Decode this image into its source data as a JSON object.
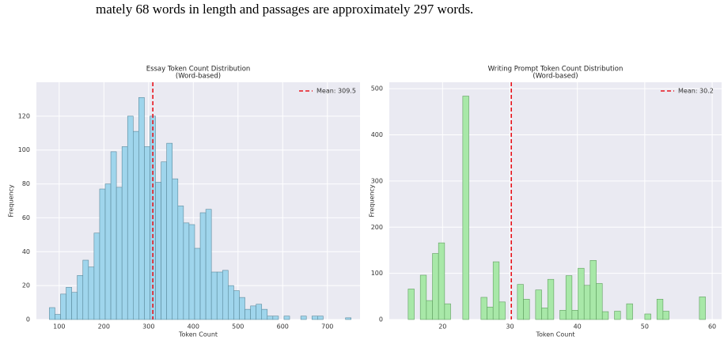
{
  "paragraph": "mately 68 words in length and passages are approximately 297 words.",
  "chart_data": [
    {
      "type": "histogram",
      "title": "Essay Token Count Distribution",
      "subtitle": "(Word-based)",
      "xlabel": "Token Count",
      "ylabel": "Frequency",
      "color": "#9fd5ec",
      "edgecolor": "#5b8a9c",
      "bins": [
        78,
        90.5,
        103,
        115.5,
        128,
        140.5,
        153,
        165.5,
        178,
        190.5,
        203,
        215.5,
        228,
        240.5,
        253,
        265.5,
        278,
        290.5,
        303,
        315.5,
        328,
        340.5,
        353,
        365.5,
        378,
        390.5,
        403,
        415.5,
        428,
        440.5,
        453,
        465.5,
        478,
        490.5,
        503,
        515.5,
        528,
        540.5,
        553,
        565.5,
        578,
        590.5,
        603,
        615.5,
        628,
        640.5,
        653,
        665.5,
        678,
        690.5,
        703,
        715.5,
        728,
        740.5,
        753
      ],
      "values": [
        7,
        3,
        15,
        19,
        16,
        26,
        35,
        31,
        51,
        77,
        80,
        99,
        78,
        102,
        120,
        111,
        131,
        102,
        120,
        81,
        93,
        104,
        83,
        67,
        57,
        56,
        42,
        63,
        65,
        28,
        28,
        29,
        20,
        17,
        13,
        6,
        8,
        9,
        6,
        2,
        2,
        0,
        2,
        0,
        0,
        2,
        0,
        2,
        2,
        0,
        0,
        0,
        0,
        1
      ],
      "mean": 309.5,
      "mean_label": "Mean: 309.5",
      "mean_color": "#e8141c",
      "xlim": [
        49,
        773
      ],
      "ylim": [
        0,
        140
      ],
      "xticks": [
        100,
        200,
        300,
        400,
        500,
        600,
        700
      ],
      "yticks": [
        0,
        20,
        40,
        60,
        80,
        100,
        120
      ],
      "grid": true
    },
    {
      "type": "histogram",
      "title": "Writing Prompt Token Count Distribution",
      "subtitle": "(Word-based)",
      "xlabel": "Token Count",
      "ylabel": "Frequency",
      "color": "#a8e8a8",
      "edgecolor": "#5f9e5f",
      "bins": [
        14,
        14.9,
        15.8,
        16.7,
        17.6,
        18.5,
        19.4,
        20.3,
        21.2,
        22.1,
        23,
        23.9,
        24.8,
        25.7,
        26.6,
        27.5,
        28.4,
        29.3,
        30.2,
        31.1,
        32,
        32.9,
        33.8,
        34.7,
        35.6,
        36.5,
        37.4,
        38.3,
        39.2,
        40.1,
        41,
        41.9,
        42.8,
        43.7,
        44.6,
        45.5,
        46.4,
        47.3,
        48.2,
        49.1,
        50,
        50.9,
        51.8,
        52.7,
        53.6,
        54.5,
        55.4,
        56.3,
        57.2,
        58.1,
        59
      ],
      "values": [
        0,
        66,
        0,
        96,
        41,
        143,
        166,
        34,
        0,
        0,
        484,
        0,
        0,
        48,
        27,
        125,
        38,
        0,
        0,
        76,
        44,
        0,
        64,
        25,
        87,
        0,
        20,
        95,
        20,
        111,
        74,
        128,
        78,
        17,
        0,
        18,
        0,
        34,
        0,
        0,
        12,
        0,
        44,
        18,
        0,
        0,
        0,
        0,
        0,
        49
      ],
      "mean": 30.2,
      "mean_label": "Mean: 30.2",
      "mean_color": "#e8141c",
      "xlim": [
        12.1,
        61.4
      ],
      "ylim": [
        0,
        514
      ],
      "xticks": [
        20,
        30,
        40,
        50,
        60
      ],
      "yticks": [
        0,
        100,
        200,
        300,
        400,
        500
      ],
      "grid": true
    }
  ]
}
